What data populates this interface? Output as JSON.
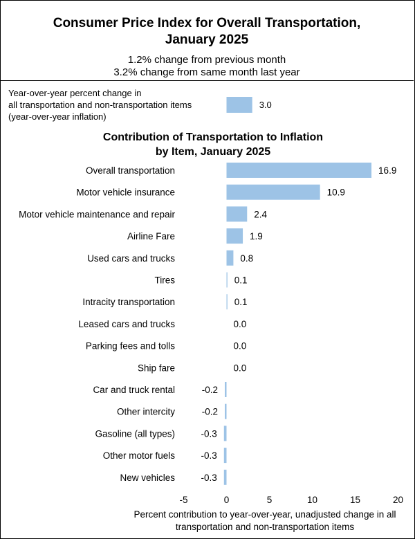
{
  "header": {
    "title": "Consumer Price Index for Overall Transportation, January 2025",
    "subtitle_1": "1.2% change from previous month",
    "subtitle_2": "3.2% change from same month last year"
  },
  "chart_data": {
    "type": "bar",
    "orientation": "horizontal",
    "summary_bar": {
      "label_lines": [
        "Year-over-year  percent change in",
        "all transportation and non-transportation items",
        "(year-over-year  inflation)"
      ],
      "value": 3.0,
      "display": "3.0"
    },
    "title_lines": [
      "Contribution  of Transportation to Inflation",
      "by Item, January  2025"
    ],
    "categories": [
      "Overall transportation",
      "Motor vehicle insurance",
      "Motor vehicle maintenance and repair",
      "Airline Fare",
      "Used cars and trucks",
      "Tires",
      "Intracity transportation",
      "Leased cars and trucks",
      "Parking fees and tolls",
      "Ship fare",
      "Car and truck rental",
      "Other intercity",
      "Gasoline (all types)",
      "Other motor fuels",
      "New vehicles"
    ],
    "values": [
      16.9,
      10.9,
      2.4,
      1.9,
      0.8,
      0.1,
      0.1,
      0.0,
      0.0,
      0.0,
      -0.2,
      -0.2,
      -0.3,
      -0.3,
      -0.3
    ],
    "value_labels": [
      "16.9",
      "10.9",
      "2.4",
      "1.9",
      "0.8",
      "0.1",
      "0.1",
      "0.0",
      "0.0",
      "0.0",
      "-0.2",
      "-0.2",
      "-0.3",
      "-0.3",
      "-0.3"
    ],
    "xlim": [
      -5,
      20
    ],
    "x_ticks": [
      "-5",
      "0",
      "5",
      "10",
      "15",
      "20"
    ],
    "xlabel_lines": [
      "Percent contribution to year-over-year,  unadjusted change in all",
      "transportation  and non-transportation  items"
    ],
    "bar_color": "#9DC3E6",
    "grid": false,
    "legend": "none"
  }
}
